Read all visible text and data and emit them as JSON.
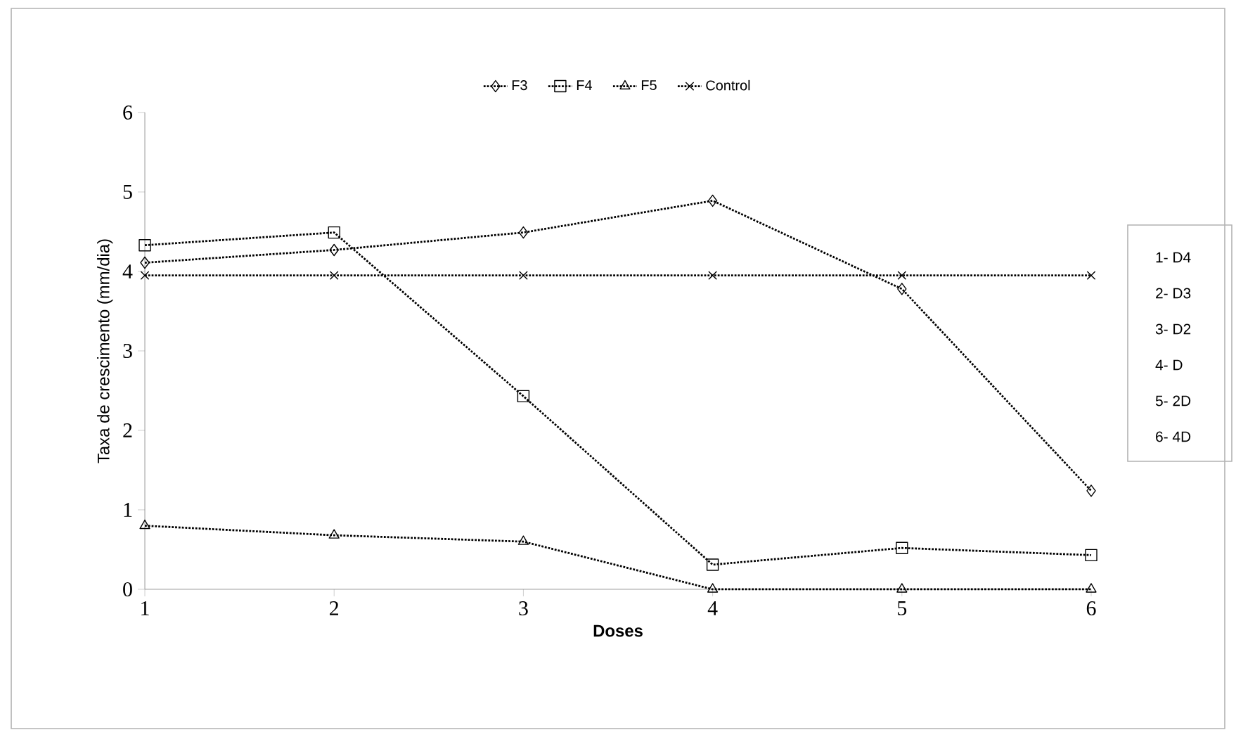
{
  "chart_data": {
    "type": "line",
    "xlabel": "Doses",
    "ylabel": "Taxa de crescimento (mm/dia)",
    "categories": [
      "1",
      "2",
      "3",
      "4",
      "5",
      "6"
    ],
    "series": [
      {
        "name": "F3",
        "color": "#000000",
        "marker": "diamond",
        "values": [
          4.11,
          4.27,
          4.49,
          4.89,
          3.78,
          1.24
        ]
      },
      {
        "name": "F4",
        "color": "#000000",
        "marker": "square",
        "values": [
          4.33,
          4.49,
          2.43,
          0.31,
          0.52,
          0.43
        ]
      },
      {
        "name": "F5",
        "color": "#000000",
        "marker": "triangle",
        "values": [
          0.8,
          0.68,
          0.6,
          0,
          0,
          0
        ]
      },
      {
        "name": "Control",
        "color": "#000000",
        "marker": "cross",
        "values": [
          3.95,
          3.95,
          3.95,
          3.95,
          3.95,
          3.95
        ]
      }
    ],
    "ylim": [
      0,
      6
    ],
    "yticks": [
      0,
      1,
      2,
      3,
      4,
      5,
      6
    ],
    "grid": false,
    "legend": "top",
    "line_style": "dotted",
    "annotations": [
      "1- D4",
      "2- D3",
      "3- D2",
      "4- D",
      "5- 2D",
      "6- 4D"
    ]
  }
}
